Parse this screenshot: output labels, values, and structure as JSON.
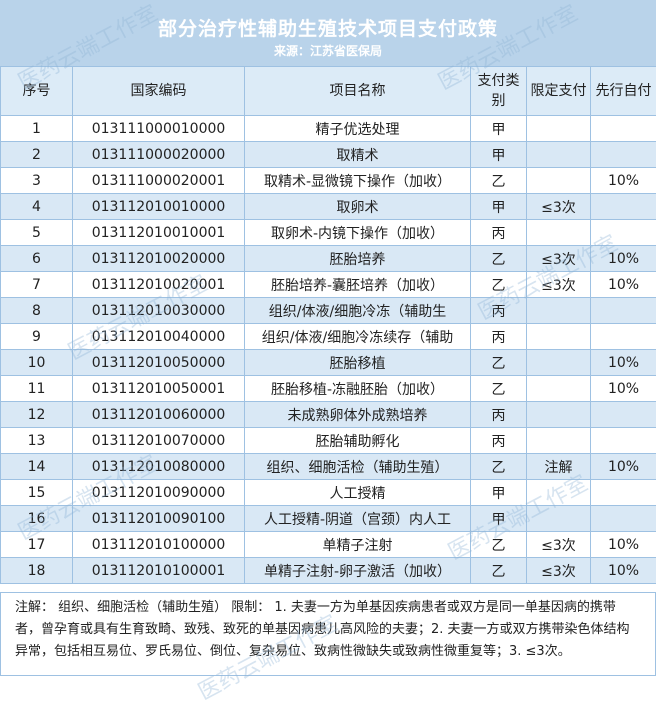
{
  "header": {
    "title": "部分治疗性辅助生殖技术项目支付政策",
    "source": "来源：江苏省医保局"
  },
  "watermark": "医药云端工作室",
  "table": {
    "columns": [
      "序号",
      "国家编码",
      "项目名称",
      "支付类别",
      "限定支付",
      "先行自付"
    ],
    "rows": [
      {
        "no": "1",
        "code": "013111000010000",
        "name": "精子优选处理",
        "pay": "甲",
        "limit": "",
        "self": ""
      },
      {
        "no": "2",
        "code": "013111000020000",
        "name": "取精术",
        "pay": "甲",
        "limit": "",
        "self": ""
      },
      {
        "no": "3",
        "code": "013111000020001",
        "name": "取精术-显微镜下操作（加收）",
        "pay": "乙",
        "limit": "",
        "self": "10%"
      },
      {
        "no": "4",
        "code": "013112010010000",
        "name": "取卵术",
        "pay": "甲",
        "limit": "≤3次",
        "self": ""
      },
      {
        "no": "5",
        "code": "013112010010001",
        "name": "取卵术-内镜下操作（加收）",
        "pay": "丙",
        "limit": "",
        "self": ""
      },
      {
        "no": "6",
        "code": "013112010020000",
        "name": "胚胎培养",
        "pay": "乙",
        "limit": "≤3次",
        "self": "10%"
      },
      {
        "no": "7",
        "code": "013112010020001",
        "name": "胚胎培养-囊胚培养（加收）",
        "pay": "乙",
        "limit": "≤3次",
        "self": "10%"
      },
      {
        "no": "8",
        "code": "013112010030000",
        "name": "组织/体液/细胞冷冻（辅助生",
        "pay": "丙",
        "limit": "",
        "self": ""
      },
      {
        "no": "9",
        "code": "013112010040000",
        "name": "组织/体液/细胞冷冻续存（辅助",
        "pay": "丙",
        "limit": "",
        "self": ""
      },
      {
        "no": "10",
        "code": "013112010050000",
        "name": "胚胎移植",
        "pay": "乙",
        "limit": "",
        "self": "10%"
      },
      {
        "no": "11",
        "code": "013112010050001",
        "name": "胚胎移植-冻融胚胎（加收）",
        "pay": "乙",
        "limit": "",
        "self": "10%"
      },
      {
        "no": "12",
        "code": "013112010060000",
        "name": "未成熟卵体外成熟培养",
        "pay": "丙",
        "limit": "",
        "self": ""
      },
      {
        "no": "13",
        "code": "013112010070000",
        "name": "胚胎辅助孵化",
        "pay": "丙",
        "limit": "",
        "self": ""
      },
      {
        "no": "14",
        "code": "013112010080000",
        "name": "组织、细胞活检（辅助生殖）",
        "pay": "乙",
        "limit": "注解",
        "self": "10%"
      },
      {
        "no": "15",
        "code": "013112010090000",
        "name": "人工授精",
        "pay": "甲",
        "limit": "",
        "self": ""
      },
      {
        "no": "16",
        "code": "013112010090100",
        "name": "人工授精-阴道（宫颈）内人工",
        "pay": "甲",
        "limit": "",
        "self": ""
      },
      {
        "no": "17",
        "code": "013112010100000",
        "name": "单精子注射",
        "pay": "乙",
        "limit": "≤3次",
        "self": "10%"
      },
      {
        "no": "18",
        "code": "013112010100001",
        "name": "单精子注射-卵子激活（加收）",
        "pay": "乙",
        "limit": "≤3次",
        "self": "10%"
      }
    ]
  },
  "note": "注解： 组织、细胞活检（辅助生殖） 限制： 1. 夫妻一方为单基因疾病患者或双方是同一单基因病的携带者，曾孕育或具有生育致畸、致残、致死的单基因病患儿高风险的夫妻；2. 夫妻一方或双方携带染色体结构异常，包括相互易位、罗氏易位、倒位、复杂易位、致病性微缺失或致病性微重复等；3. ≤3次。"
}
